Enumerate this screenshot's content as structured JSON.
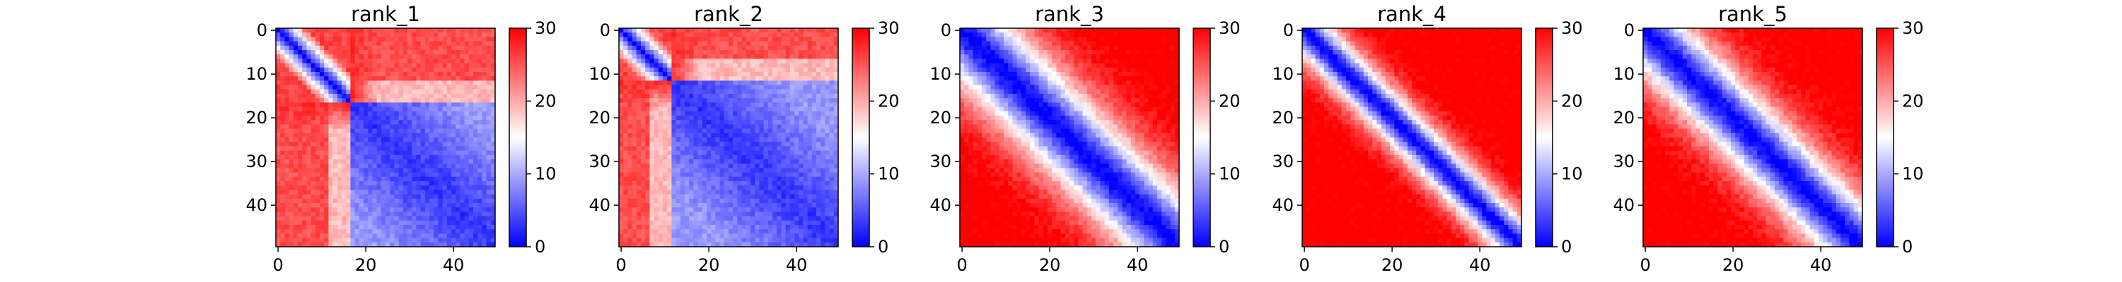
{
  "chart_data": {
    "type": "heatmap",
    "grid_size": 50,
    "colormap": {
      "name": "bwr",
      "low": "#0000ff",
      "mid": "#ffffff",
      "high": "#ff0000"
    },
    "x_ticks": [
      0,
      20,
      40
    ],
    "y_ticks": [
      0,
      10,
      20,
      30,
      40
    ],
    "colorbar": {
      "range": [
        0,
        30
      ],
      "ticks": [
        0,
        10,
        20,
        30
      ]
    },
    "grid": false,
    "panels": [
      {
        "title": "rank_1",
        "pattern": "two_block",
        "split": 17
      },
      {
        "title": "rank_2",
        "pattern": "two_block",
        "split": 12
      },
      {
        "title": "rank_3",
        "pattern": "band",
        "width": 13
      },
      {
        "title": "rank_4",
        "pattern": "band",
        "width": 7
      },
      {
        "title": "rank_5",
        "pattern": "band",
        "width": 11
      }
    ]
  }
}
